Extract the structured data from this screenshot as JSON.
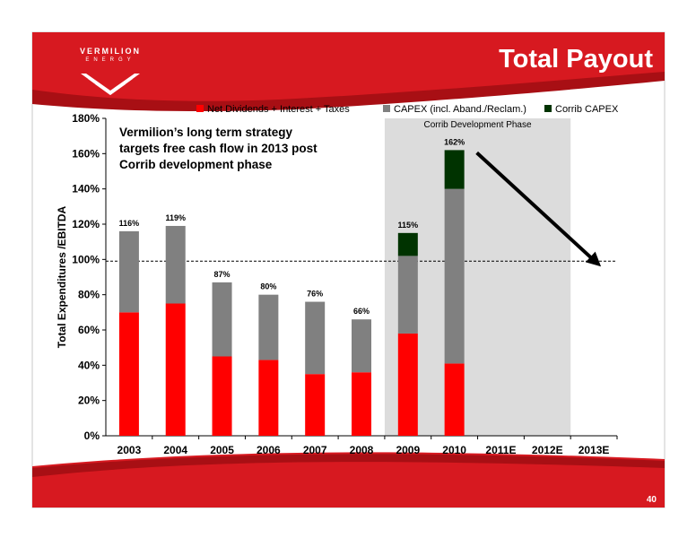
{
  "slide": {
    "title": "Total Payout",
    "logo_name": "VERMILION",
    "logo_sub": "ENERGY",
    "page_number": "40",
    "colors": {
      "brand_red": "#D71920",
      "dark_red": "#A80F14"
    }
  },
  "chart_data": {
    "type": "bar",
    "stacked": true,
    "categories": [
      "2003",
      "2004",
      "2005",
      "2006",
      "2007",
      "2008",
      "2009",
      "2010",
      "2011E",
      "2012E",
      "2013E"
    ],
    "series": [
      {
        "name": "Net Dividends + Interest + Taxes",
        "color": "#FF0000",
        "values": [
          70,
          75,
          45,
          43,
          35,
          36,
          58,
          41,
          null,
          null,
          null
        ]
      },
      {
        "name": "CAPEX (incl. Aband./Reclam.)",
        "color": "#808080",
        "values": [
          46,
          44,
          42,
          37,
          41,
          30,
          44,
          99,
          null,
          null,
          null
        ]
      },
      {
        "name": "Corrib CAPEX",
        "color": "#003300",
        "values": [
          0,
          0,
          0,
          0,
          0,
          0,
          13,
          22,
          null,
          null,
          null
        ]
      }
    ],
    "total_labels": [
      "116%",
      "119%",
      "87%",
      "80%",
      "76%",
      "66%",
      "115%",
      "162%",
      "",
      "",
      ""
    ],
    "ylabel": "Total Expenditures /EBITDA",
    "ylim": [
      0,
      180
    ],
    "yticks": [
      0,
      20,
      40,
      60,
      80,
      100,
      120,
      140,
      160,
      180
    ],
    "ytick_labels": [
      "0%",
      "20%",
      "40%",
      "60%",
      "80%",
      "100%",
      "120%",
      "140%",
      "160%",
      "180%"
    ],
    "reference_line": 99,
    "shaded_region": {
      "categories": [
        "2009",
        "2010",
        "2011E",
        "2012E"
      ],
      "label": "Corrib Development Phase"
    },
    "annotation": [
      "Vermilion’s long term strategy",
      "targets free cash flow in 2013 post",
      "Corrib development phase"
    ],
    "legend_position": "top",
    "grid": false
  }
}
